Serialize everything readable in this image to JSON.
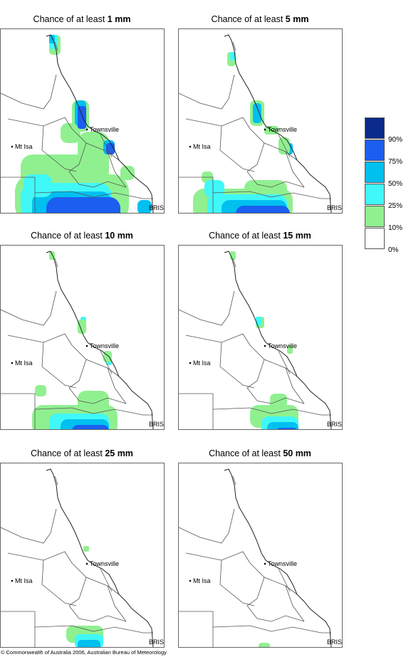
{
  "panels": [
    {
      "title_prefix": "Chance of at least ",
      "title_value": "1 mm"
    },
    {
      "title_prefix": "Chance of at least ",
      "title_value": "5 mm"
    },
    {
      "title_prefix": "Chance of at least ",
      "title_value": "10 mm"
    },
    {
      "title_prefix": "Chance of at least ",
      "title_value": "15 mm"
    },
    {
      "title_prefix": "Chance of at least ",
      "title_value": "25 mm"
    },
    {
      "title_prefix": "Chance of at least ",
      "title_value": "50 mm"
    }
  ],
  "places": {
    "townsville": "Townsville",
    "mt_isa": "Mt Isa",
    "brisbane": "BRIS"
  },
  "legend": {
    "labels": [
      "90%",
      "75%",
      "50%",
      "25%",
      "10%",
      "0%"
    ],
    "colors": [
      "#0a2a8c",
      "#1c5ef0",
      "#00c0f0",
      "#40f8f8",
      "#90f090",
      "#ffffff"
    ]
  },
  "copyright": "© Commonwealth of Australia 2006, Australian Bureau of Meteorology",
  "colors": {
    "map_line": "#555555",
    "coast": "#222222",
    "lt10": "#90f090",
    "p25": "#40f8f8",
    "p50": "#00c0f0",
    "p75": "#1c5ef0",
    "p90": "#0a2a8c"
  }
}
